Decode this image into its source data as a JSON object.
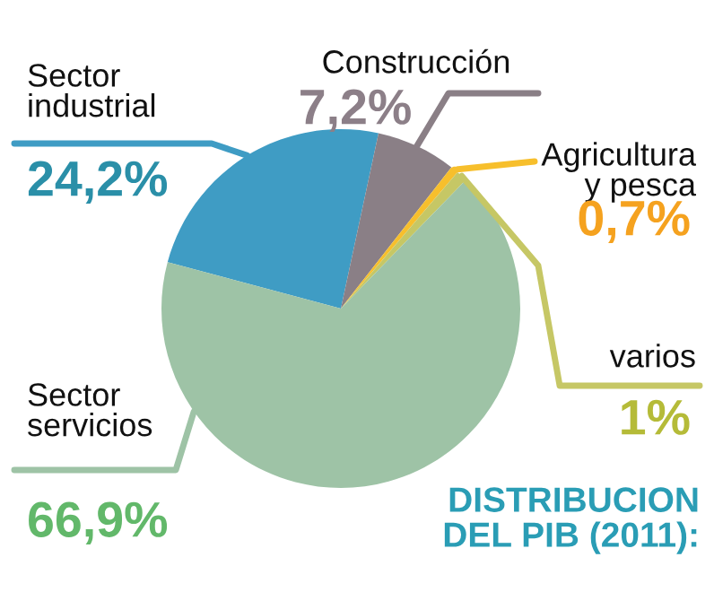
{
  "chart_data": {
    "type": "pie",
    "title": "DISTRIBUCION\nDEL PIB (2011):",
    "categories": [
      "Sector\nindustrial",
      "Construcción",
      "Agricultura\ny pesca",
      "varios",
      "Sector\nservicios"
    ],
    "values": [
      24.2,
      7.2,
      0.7,
      1,
      66.9
    ],
    "value_labels": [
      "24,2%",
      "7,2%",
      "0,7%",
      "1%",
      "66,9%"
    ],
    "colors": [
      "#3f9cc4",
      "#8a7f86",
      "#f7bf2c",
      "#c6c765",
      "#9ec3a6"
    ],
    "legend": false
  }
}
